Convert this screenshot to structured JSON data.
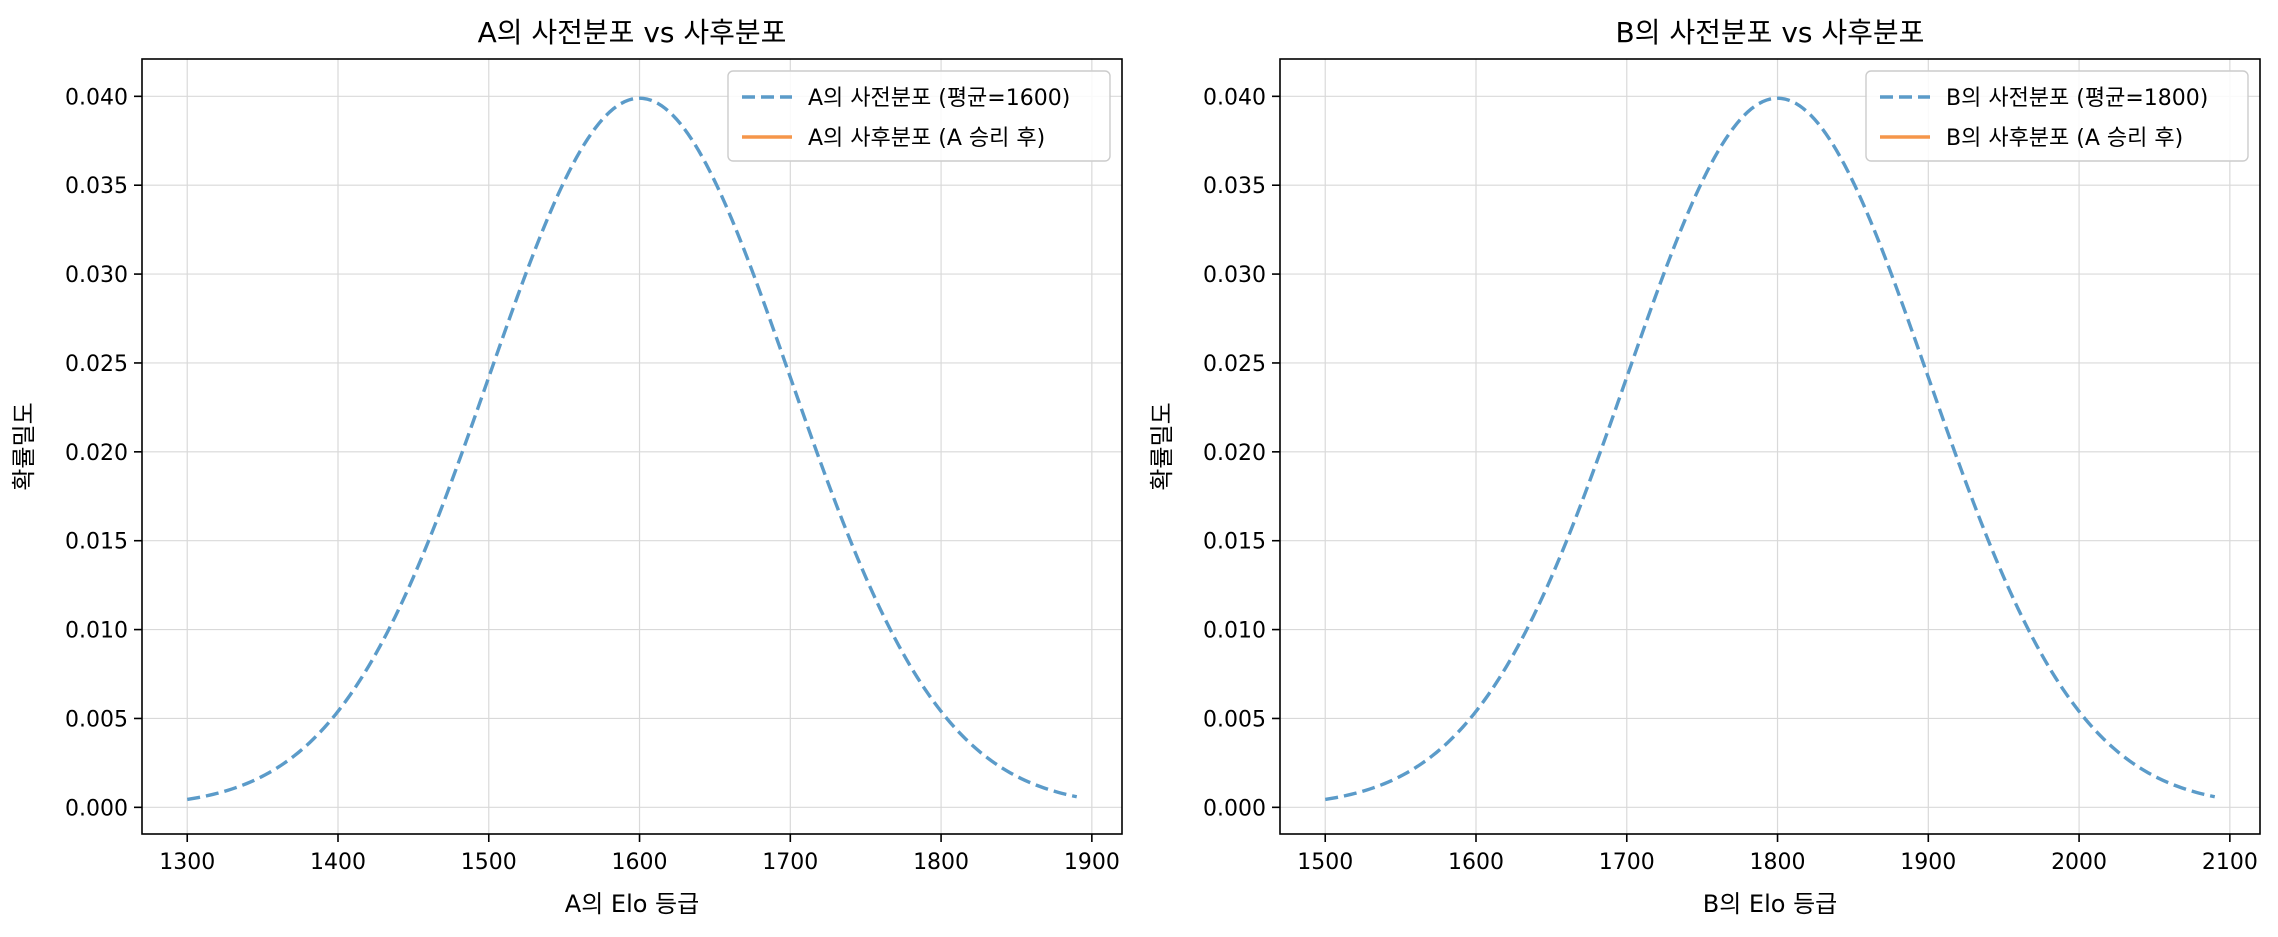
{
  "chart_data": [
    {
      "type": "line",
      "title": "A의 사전분포 vs 사후분포",
      "xlabel": "A의 Elo 등급",
      "ylabel": "확률밀도",
      "xlim": [
        1270,
        1920
      ],
      "ylim": [
        -0.0015,
        0.0421
      ],
      "xticks": [
        1300,
        1400,
        1500,
        1600,
        1700,
        1800,
        1900
      ],
      "yticks": [
        "0.000",
        "0.005",
        "0.010",
        "0.015",
        "0.020",
        "0.025",
        "0.030",
        "0.035",
        "0.040"
      ],
      "grid": true,
      "legend_position": "upper right",
      "series": [
        {
          "name": "A의 사전분포 (평균=1600)",
          "style": "dashed",
          "color": "#5b9bc9",
          "distribution": "normal",
          "mean": 1600,
          "sd": 100,
          "x_range": [
            1300,
            1890
          ]
        },
        {
          "name": "A의 사후분포 (A 승리 후)",
          "style": "solid",
          "color": "#f5964a",
          "points": []
        }
      ]
    },
    {
      "type": "line",
      "title": "B의 사전분포 vs 사후분포",
      "xlabel": "B의 Elo 등급",
      "ylabel": "확률밀도",
      "xlim": [
        1470,
        2120
      ],
      "ylim": [
        -0.0015,
        0.0421
      ],
      "xticks": [
        1500,
        1600,
        1700,
        1800,
        1900,
        2000,
        2100
      ],
      "yticks": [
        "0.000",
        "0.005",
        "0.010",
        "0.015",
        "0.020",
        "0.025",
        "0.030",
        "0.035",
        "0.040"
      ],
      "grid": true,
      "legend_position": "upper right",
      "series": [
        {
          "name": "B의 사전분포 (평균=1800)",
          "style": "dashed",
          "color": "#5b9bc9",
          "distribution": "normal",
          "mean": 1800,
          "sd": 100,
          "x_range": [
            1500,
            2090
          ]
        },
        {
          "name": "B의 사후분포 (A 승리 후)",
          "style": "solid",
          "color": "#f5964a",
          "points": []
        }
      ]
    }
  ]
}
